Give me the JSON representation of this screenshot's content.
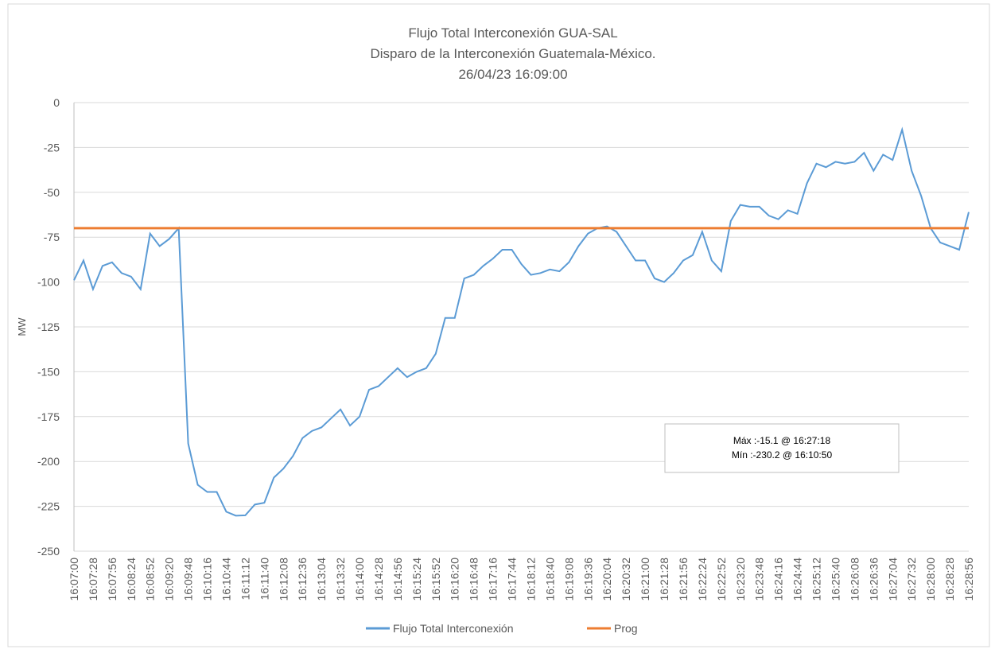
{
  "chart_data": {
    "type": "line",
    "title": "Flujo Total Interconexión GUA-SAL",
    "subtitle": [
      "Disparo de la Interconexión Guatemala-México.",
      "26/04/23 16:09:00"
    ],
    "ylabel": "MW",
    "annotations": [
      "Máx :-15.1 @ 16:27:18",
      "Mín :-230.2 @ 16:10:50"
    ],
    "x": [
      "16:07:00",
      null,
      "16:07:28",
      null,
      "16:07:56",
      null,
      "16:08:24",
      null,
      "16:08:52",
      null,
      "16:09:20",
      null,
      "16:09:48",
      null,
      "16:10:16",
      null,
      "16:10:44",
      null,
      "16:11:12",
      null,
      "16:11:40",
      null,
      "16:12:08",
      null,
      "16:12:36",
      null,
      "16:13:04",
      null,
      "16:13:32",
      null,
      "16:14:00",
      null,
      "16:14:28",
      null,
      "16:14:56",
      null,
      "16:15:24",
      null,
      "16:15:52",
      null,
      "16:16:20",
      null,
      "16:16:48",
      null,
      "16:17:16",
      null,
      "16:17:44",
      null,
      "16:18:12",
      null,
      "16:18:40",
      null,
      "16:19:08",
      null,
      "16:19:36",
      null,
      "16:20:04",
      null,
      "16:20:32",
      null,
      "16:21:00",
      null,
      "16:21:28",
      null,
      "16:21:56",
      null,
      "16:22:24",
      null,
      "16:22:52",
      null,
      "16:23:20",
      null,
      "16:23:48",
      null,
      "16:24:16",
      null,
      "16:24:44",
      null,
      "16:25:12",
      null,
      "16:25:40",
      null,
      "16:26:08",
      null,
      "16:26:36",
      null,
      "16:27:04",
      null,
      "16:27:32",
      null,
      "16:28:00",
      null,
      "16:28:28",
      null,
      "16:28:56"
    ],
    "series": [
      {
        "name": "Flujo Total Interconexión",
        "color": "#5b9bd5",
        "values": [
          -99,
          -88,
          -104,
          -91,
          -89,
          -95,
          -97,
          -104,
          -73,
          -80,
          -76,
          -70,
          -190,
          -213,
          -217,
          -217,
          -228,
          -230.2,
          -230,
          -224,
          -223,
          -209,
          -204,
          -197,
          -187,
          -183,
          -181,
          -176,
          -171,
          -180,
          -175,
          -160,
          -158,
          -153,
          -148,
          -153,
          -150,
          -148,
          -140,
          -120,
          -120,
          -98,
          -96,
          -91,
          -87,
          -82,
          -82,
          -90,
          -96,
          -95,
          -93,
          -94,
          -89,
          -80,
          -73,
          -70,
          -69,
          -72,
          -80,
          -88,
          -88,
          -98,
          -100,
          -95,
          -88,
          -85,
          -72,
          -88,
          -94,
          -66,
          -57,
          -58,
          -58,
          -63,
          -65,
          -60,
          -62,
          -45,
          -34,
          -36,
          -33,
          -34,
          -33,
          -28,
          -38,
          -29,
          -32,
          -15.1,
          -38,
          -52,
          -70,
          -78,
          -80,
          -82,
          -61
        ]
      },
      {
        "name": "Prog",
        "color": "#ed7d31",
        "values": [
          -70,
          -70,
          -70,
          -70,
          -70,
          -70,
          -70,
          -70,
          -70,
          -70,
          -70,
          -70,
          -70,
          -70,
          -70,
          -70,
          -70,
          -70,
          -70,
          -70,
          -70,
          -70,
          -70,
          -70,
          -70,
          -70,
          -70,
          -70,
          -70,
          -70,
          -70,
          -70,
          -70,
          -70,
          -70,
          -70,
          -70,
          -70,
          -70,
          -70,
          -70,
          -70,
          -70,
          -70,
          -70,
          -70,
          -70,
          -70,
          -70,
          -70,
          -70,
          -70,
          -70,
          -70,
          -70,
          -70,
          -70,
          -70,
          -70,
          -70,
          -70,
          -70,
          -70,
          -70,
          -70,
          -70,
          -70,
          -70,
          -70,
          -70,
          -70,
          -70,
          -70,
          -70,
          -70,
          -70,
          -70,
          -70,
          -70,
          -70,
          -70,
          -70,
          -70,
          -70,
          -70,
          -70,
          -70,
          -70,
          -70,
          -70,
          -70,
          -70,
          -70,
          -70,
          -70
        ]
      }
    ],
    "ylim": [
      -250,
      0
    ],
    "yticks": [
      0,
      -25,
      -50,
      -75,
      -100,
      -125,
      -150,
      -175,
      -200,
      -225,
      -250
    ],
    "grid": true,
    "legend": "bottom"
  }
}
